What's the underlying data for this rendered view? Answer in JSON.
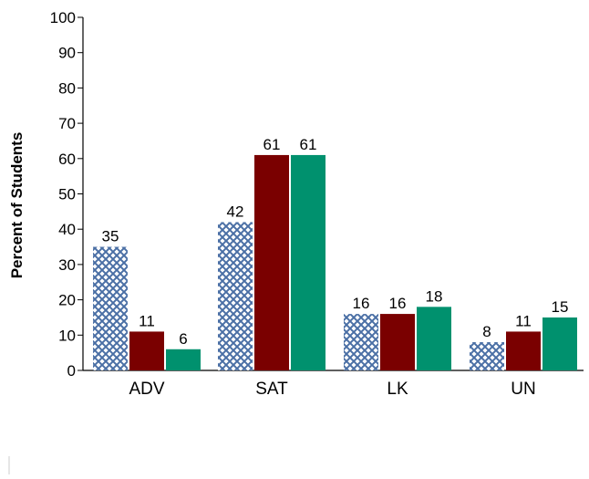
{
  "chart_data": {
    "type": "bar",
    "title": "",
    "xlabel": "",
    "ylabel": "Percent of Students",
    "ylim": [
      0,
      100
    ],
    "yticks": [
      0,
      10,
      20,
      30,
      40,
      50,
      60,
      70,
      80,
      90,
      100
    ],
    "categories": [
      "ADV",
      "SAT",
      "LK",
      "UN"
    ],
    "series": [
      {
        "values": [
          35,
          42,
          16,
          8
        ],
        "color": "#4a6fa5",
        "pattern": "crosshatch"
      },
      {
        "values": [
          11,
          61,
          16,
          11
        ],
        "color": "#7a0000"
      },
      {
        "values": [
          6,
          61,
          18,
          15
        ],
        "color": "#00916e"
      }
    ],
    "grid": false,
    "legend": "none"
  }
}
